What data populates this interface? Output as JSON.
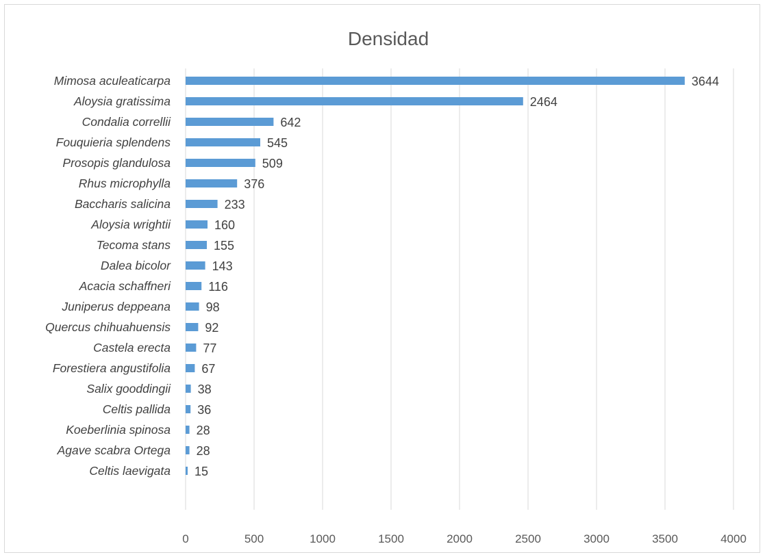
{
  "chart_data": {
    "type": "bar",
    "orientation": "horizontal",
    "title": "Densidad",
    "xlabel": "",
    "ylabel": "",
    "categories": [
      "Mimosa aculeaticarpa",
      "Aloysia gratissima",
      "Condalia correllii",
      "Fouquieria splendens",
      "Prosopis glandulosa",
      "Rhus microphylla",
      "Baccharis salicina",
      "Aloysia wrightii",
      "Tecoma stans",
      "Dalea  bicolor",
      "Acacia schaffneri",
      "Juniperus deppeana",
      "Quercus chihuahuensis",
      "Castela erecta",
      "Forestiera angustifolia",
      "Salix gooddingii",
      "Celtis pallida",
      "Koeberlinia spinosa",
      "Agave scabra Ortega",
      "Celtis laevigata"
    ],
    "values": [
      3644,
      2464,
      642,
      545,
      509,
      376,
      233,
      160,
      155,
      143,
      116,
      98,
      92,
      77,
      67,
      38,
      36,
      28,
      28,
      15
    ],
    "data_labels": [
      "3644",
      "2464",
      "642",
      "545",
      "509",
      "376",
      "233",
      "160",
      "155",
      "143",
      "116",
      "98",
      "92",
      "77",
      "67",
      "38",
      "36",
      "28",
      "28",
      "15"
    ],
    "xlim": [
      0,
      4000
    ],
    "xticks": [
      "0",
      "500",
      "1000",
      "1500",
      "2000",
      "2500",
      "3000",
      "3500",
      "4000"
    ],
    "xtick_values": [
      0,
      500,
      1000,
      1500,
      2000,
      2500,
      3000,
      3500,
      4000
    ],
    "grid": "vertical",
    "legend": "none",
    "bar_color": "#5b9bd5",
    "grid_color": "#d9d9d9",
    "text_color": "#404040"
  }
}
